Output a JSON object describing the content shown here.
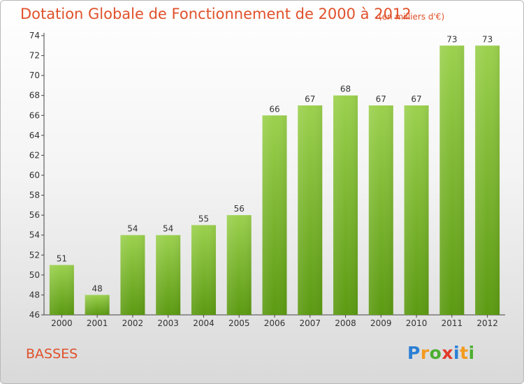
{
  "title": "Dotation Globale de Fonctionnement de 2000 à 2012",
  "unit_note": "(en milliers d'€)",
  "place": "BASSES",
  "logo": {
    "letters": [
      "P",
      "r",
      "o",
      "x",
      "i",
      "t",
      "i"
    ],
    "colors": [
      "#2b7fd4",
      "#f39a1e",
      "#4caf2f",
      "#e23a2a",
      "#2b7fd4",
      "#f39a1e",
      "#4caf2f"
    ]
  },
  "colors": {
    "accent": "#e0502a",
    "bar_light": "#9bd14e",
    "bar_dark": "#5c9a12"
  },
  "chart_data": {
    "type": "bar",
    "title": "Dotation Globale de Fonctionnement de 2000 à 2012",
    "categories": [
      "2000",
      "2001",
      "2002",
      "2003",
      "2004",
      "2005",
      "2006",
      "2007",
      "2008",
      "2009",
      "2010",
      "2011",
      "2012"
    ],
    "values": [
      51,
      48,
      54,
      54,
      55,
      56,
      66,
      67,
      68,
      67,
      67,
      73,
      73
    ],
    "ylim": [
      46,
      74
    ],
    "yticks": [
      46,
      48,
      50,
      52,
      54,
      56,
      58,
      60,
      62,
      64,
      66,
      68,
      70,
      72,
      74
    ],
    "grid": false,
    "xlabel": "",
    "ylabel": ""
  }
}
